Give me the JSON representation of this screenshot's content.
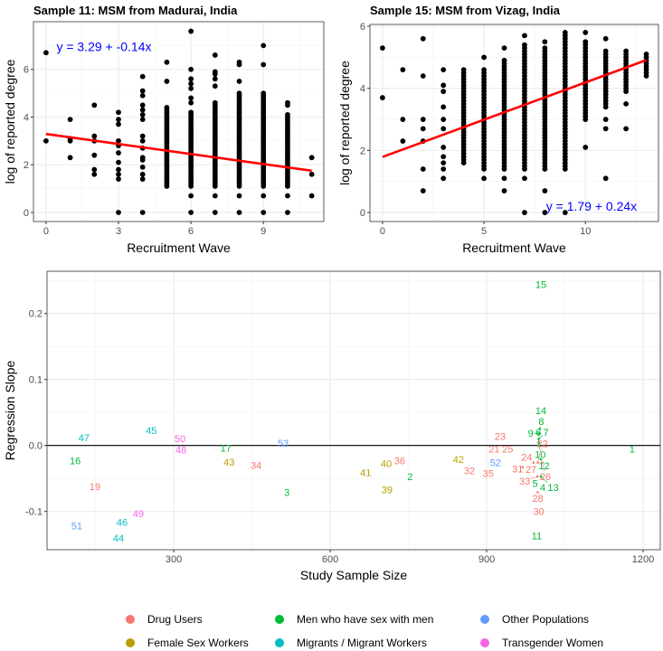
{
  "chart_data": [
    {
      "type": "scatter",
      "title": "Sample 11: MSM from Madurai, India",
      "xlabel": "Recruitment Wave",
      "ylabel": "log of reported degree",
      "xlim": [
        -0.52,
        11.5
      ],
      "ylim": [
        -0.38,
        8.0
      ],
      "xticks": [
        0,
        3,
        6,
        9
      ],
      "yticks": [
        0,
        2,
        4,
        6
      ],
      "grid": true,
      "regression": {
        "intercept": 3.29,
        "slope": -0.14,
        "x_range": [
          0,
          11
        ],
        "color": "#ff0000"
      },
      "annotation": {
        "text": "y = 3.29 + -0.14x",
        "x": 2.4,
        "y": 6.95,
        "color": "#0000ff"
      },
      "points": [
        {
          "x": 0,
          "y": [
            6.7,
            3.0
          ]
        },
        {
          "x": 1,
          "y": [
            3.9,
            3.1,
            3.0,
            2.3
          ]
        },
        {
          "x": 2,
          "y": [
            4.5,
            3.2,
            3.0,
            2.4,
            1.8,
            1.6
          ]
        },
        {
          "x": 3,
          "y": [
            4.2,
            3.9,
            3.7,
            3.0,
            2.8,
            2.5,
            2.1,
            1.8,
            1.6,
            1.4,
            0
          ]
        },
        {
          "x": 4,
          "y": [
            5.7,
            5.1,
            4.9,
            4.5,
            4.3,
            4.1,
            3.9,
            3.2,
            3.0,
            2.7,
            2.3,
            2.2,
            1.9,
            1.6,
            1.4,
            0
          ]
        },
        {
          "x": 5,
          "y": [
            6.3,
            5.5
          ],
          "dense": [
            1.1,
            4.4
          ]
        },
        {
          "x": 6,
          "y": [
            7.6,
            6.0,
            5.6,
            5.4,
            5.2,
            4.8,
            4.6,
            0.7,
            0
          ],
          "dense": [
            1.1,
            4.2
          ]
        },
        {
          "x": 7,
          "y": [
            6.6,
            5.9,
            5.8,
            5.6,
            5.3,
            0.7,
            0
          ],
          "dense": [
            1.1,
            4.6
          ]
        },
        {
          "x": 8,
          "y": [
            6.3,
            6.2,
            5.5,
            0.7,
            0
          ],
          "dense": [
            1.1,
            5.0
          ]
        },
        {
          "x": 9,
          "y": [
            7.0,
            6.2,
            0.7,
            0
          ],
          "dense": [
            1.1,
            5.0
          ]
        },
        {
          "x": 10,
          "y": [
            4.6,
            4.5,
            0.7,
            0
          ],
          "dense": [
            1.1,
            4.1
          ]
        },
        {
          "x": 11,
          "y": [
            2.3,
            1.6,
            0.7
          ]
        }
      ]
    },
    {
      "type": "scatter",
      "title": "Sample 15: MSM from Vizag, India",
      "xlabel": "Recruitment Wave",
      "ylabel": "log of reported degree",
      "xlim": [
        -0.62,
        13.6
      ],
      "ylim": [
        -0.29,
        6.06
      ],
      "xticks": [
        0,
        5,
        10
      ],
      "yticks": [
        0,
        2,
        4,
        6
      ],
      "grid": true,
      "regression": {
        "intercept": 1.79,
        "slope": 0.24,
        "x_range": [
          0,
          13
        ],
        "color": "#ff0000"
      },
      "annotation": {
        "text": "y = 1.79 + 0.24x",
        "x": 10.3,
        "y": 0.2,
        "color": "#0000ff"
      },
      "points": [
        {
          "x": 0,
          "y": [
            5.3,
            3.7
          ]
        },
        {
          "x": 1,
          "y": [
            4.6,
            3.0,
            2.3
          ]
        },
        {
          "x": 2,
          "y": [
            5.6,
            4.4,
            3.0,
            2.7,
            2.3,
            1.4,
            0.7
          ]
        },
        {
          "x": 3,
          "y": [
            4.6,
            4.1,
            3.9,
            3.4,
            3.0,
            2.7,
            2.1,
            1.8,
            1.6,
            1.4,
            1.1
          ]
        },
        {
          "x": 4,
          "y": [],
          "dense": [
            1.6,
            4.6
          ]
        },
        {
          "x": 5,
          "y": [
            5.0,
            1.1
          ],
          "dense": [
            1.4,
            4.6
          ]
        },
        {
          "x": 6,
          "y": [
            5.3,
            1.1,
            0.7
          ],
          "dense": [
            1.4,
            4.9
          ]
        },
        {
          "x": 7,
          "y": [
            5.7,
            1.1,
            0
          ],
          "dense": [
            1.4,
            5.4
          ]
        },
        {
          "x": 8,
          "y": [
            5.5,
            0.7,
            0
          ],
          "dense": [
            1.4,
            5.3
          ]
        },
        {
          "x": 9,
          "y": [
            0
          ],
          "dense": [
            1.4,
            5.8
          ]
        },
        {
          "x": 10,
          "y": [
            5.8,
            2.1
          ],
          "dense": [
            3.0,
            5.5
          ]
        },
        {
          "x": 11,
          "y": [
            5.6,
            3.0,
            2.7,
            1.1
          ],
          "dense": [
            3.4,
            5.2
          ]
        },
        {
          "x": 12,
          "y": [
            3.5,
            2.7
          ],
          "dense": [
            3.9,
            5.2
          ]
        },
        {
          "x": 13,
          "y": [],
          "dense": [
            4.4,
            5.1
          ]
        }
      ]
    },
    {
      "type": "scatter",
      "title": "",
      "xlabel": "Study Sample Size",
      "ylabel": "Regression Slope",
      "xlim": [
        57,
        1233
      ],
      "ylim": [
        -0.158,
        0.264
      ],
      "xticks": [
        300,
        600,
        900,
        1200
      ],
      "yticks": [
        -0.1,
        0.0,
        0.1,
        0.2
      ],
      "ytick_labels": [
        "-0.1",
        "0.0",
        "0.1",
        "0.2"
      ],
      "grid": true,
      "hline": 0,
      "legend": {
        "placement": "bottom",
        "entries": [
          {
            "name": "Drug Users",
            "color": "#F8766D"
          },
          {
            "name": "Men who have sex with men",
            "color": "#00BA38"
          },
          {
            "name": "Other Populations",
            "color": "#619CFF"
          },
          {
            "name": "Female Sex Workers",
            "color": "#B79F00"
          },
          {
            "name": "Migrants / Migrant Workers",
            "color": "#00BFC4"
          },
          {
            "name": "Transgender Women",
            "color": "#F564E3"
          }
        ]
      },
      "labels": [
        {
          "label": "47",
          "x": 128,
          "y": 0.012,
          "group": "Migrants / Migrant Workers"
        },
        {
          "label": "16",
          "x": 111,
          "y": -0.023,
          "group": "Men who have sex with men"
        },
        {
          "label": "19",
          "x": 149,
          "y": -0.062,
          "group": "Drug Users"
        },
        {
          "label": "51",
          "x": 114,
          "y": -0.122,
          "group": "Other Populations"
        },
        {
          "label": "46",
          "x": 201,
          "y": -0.116,
          "group": "Migrants / Migrant Workers"
        },
        {
          "label": "44",
          "x": 194,
          "y": -0.14,
          "group": "Migrants / Migrant Workers"
        },
        {
          "label": "49",
          "x": 232,
          "y": -0.103,
          "group": "Transgender Women"
        },
        {
          "label": "45",
          "x": 257,
          "y": 0.023,
          "group": "Migrants / Migrant Workers"
        },
        {
          "label": "50",
          "x": 312,
          "y": 0.004,
          "group": "Transgender Women"
        },
        {
          "label": "48",
          "x": 314,
          "y": 0.0,
          "group": "Transgender Women"
        },
        {
          "label": "17",
          "x": 400,
          "y": -0.004,
          "group": "Men who have sex with men"
        },
        {
          "label": "43",
          "x": 406,
          "y": -0.025,
          "group": "Female Sex Workers"
        },
        {
          "label": "34",
          "x": 458,
          "y": -0.03,
          "group": "Drug Users"
        },
        {
          "label": "53",
          "x": 510,
          "y": 0.004,
          "group": "Other Populations"
        },
        {
          "label": "3",
          "x": 517,
          "y": -0.071,
          "group": "Men who have sex with men"
        },
        {
          "label": "41",
          "x": 668,
          "y": -0.041,
          "group": "Female Sex Workers"
        },
        {
          "label": "40",
          "x": 709,
          "y": -0.027,
          "group": "Female Sex Workers"
        },
        {
          "label": "36",
          "x": 732,
          "y": -0.023,
          "group": "Drug Users"
        },
        {
          "label": "39",
          "x": 709,
          "y": -0.067,
          "group": "Female Sex Workers"
        },
        {
          "label": "2",
          "x": 753,
          "y": -0.047,
          "group": "Men who have sex with men"
        },
        {
          "label": "42",
          "x": 846,
          "y": -0.022,
          "group": "Female Sex Workers"
        },
        {
          "label": "32",
          "x": 867,
          "y": -0.037,
          "group": "Drug Users"
        },
        {
          "label": "35",
          "x": 903,
          "y": -0.041,
          "group": "Drug Users"
        },
        {
          "label": "52",
          "x": 917,
          "y": -0.027,
          "group": "Other Populations"
        },
        {
          "label": "23",
          "x": 926,
          "y": 0.014,
          "group": "Drug Users"
        },
        {
          "label": "21",
          "x": 922,
          "y": -0.005,
          "group": "Drug Users"
        },
        {
          "label": "25",
          "x": 933,
          "y": -0.005,
          "group": "Drug Users"
        },
        {
          "label": "31",
          "x": 969,
          "y": -0.033,
          "group": "Drug Users"
        },
        {
          "label": "27",
          "x": 986,
          "y": -0.033,
          "group": "Drug Users"
        },
        {
          "label": "24",
          "x": 990,
          "y": -0.026,
          "group": "Drug Users"
        },
        {
          "label": "22",
          "x": 998,
          "y": -0.026,
          "group": "Drug Users"
        },
        {
          "label": "26",
          "x": 1007,
          "y": -0.026,
          "group": "Drug Users"
        },
        {
          "label": "12",
          "x": 1004,
          "y": -0.021,
          "group": "Men who have sex with men"
        },
        {
          "label": "15",
          "x": 1004,
          "y": 0.244,
          "group": "Men who have sex with men"
        },
        {
          "label": "14",
          "x": 1004,
          "y": 0.052,
          "group": "Men who have sex with men"
        },
        {
          "label": "8",
          "x": 1002,
          "y": 0.025,
          "group": "Men who have sex with men"
        },
        {
          "label": "9",
          "x": 1000,
          "y": 0.018,
          "group": "Men who have sex with men"
        },
        {
          "label": "7",
          "x": 1000,
          "y": 0.01,
          "group": "Men who have sex with men"
        },
        {
          "label": "10",
          "x": 1000,
          "y": 0.004,
          "group": "Men who have sex with men"
        },
        {
          "label": "6",
          "x": 1000,
          "y": 0.0,
          "group": "Men who have sex with men"
        },
        {
          "label": "33",
          "x": 997,
          "y": -0.047,
          "group": "Drug Users"
        },
        {
          "label": "13",
          "x": 1004,
          "y": -0.047,
          "group": "Men who have sex with men"
        },
        {
          "label": "5",
          "x": 1000,
          "y": -0.06,
          "group": "Men who have sex with men"
        },
        {
          "label": "4",
          "x": 1000,
          "y": -0.066,
          "group": "Men who have sex with men"
        },
        {
          "label": "28",
          "x": 998,
          "y": -0.071,
          "group": "Drug Users"
        },
        {
          "label": "30",
          "x": 1000,
          "y": -0.1,
          "group": "Drug Users"
        },
        {
          "label": "11",
          "x": 996,
          "y": -0.137,
          "group": "Men who have sex with men"
        },
        {
          "label": "1",
          "x": 1179,
          "y": -0.005,
          "group": "Men who have sex with men"
        }
      ]
    }
  ]
}
